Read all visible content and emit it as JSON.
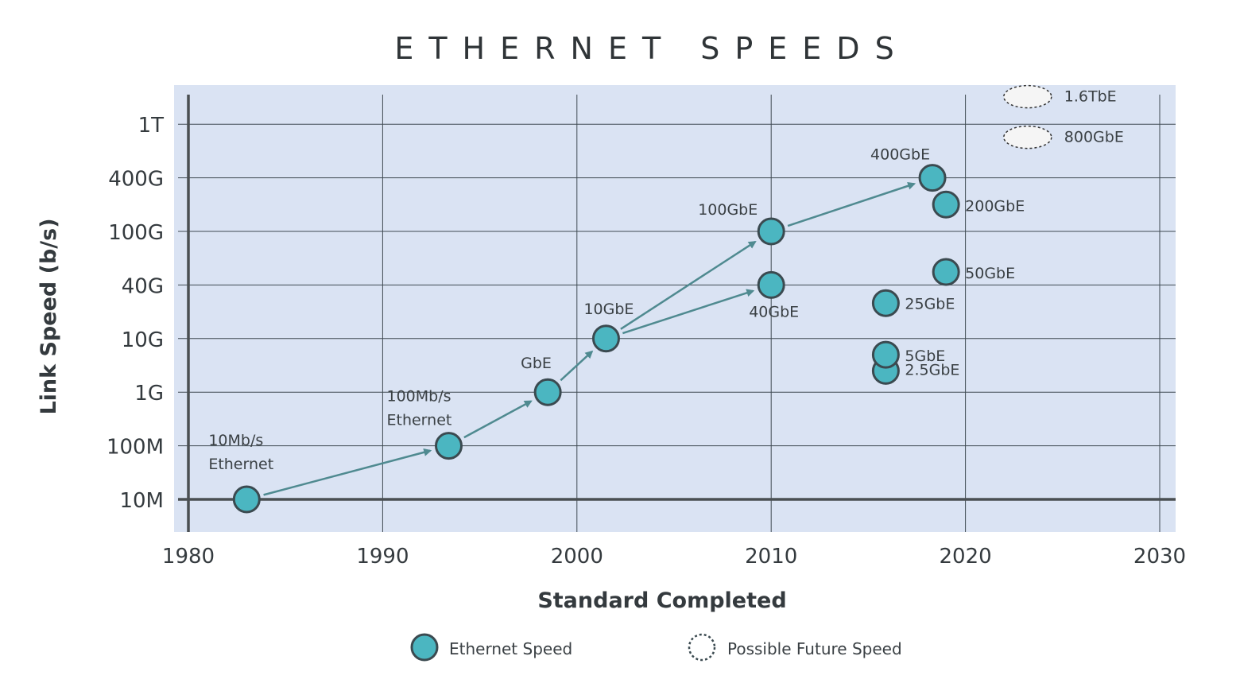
{
  "chart_data": {
    "type": "scatter",
    "title": "ETHERNET SPEEDS",
    "xlabel": "Standard Completed",
    "ylabel": "Link Speed (b/s)",
    "x_ticks": [
      "1980",
      "1990",
      "2000",
      "2010",
      "2020",
      "2030"
    ],
    "xlim": [
      1980,
      2031
    ],
    "y_ticks": [
      "10M",
      "100M",
      "1G",
      "10G",
      "40G",
      "100G",
      "400G",
      "1T"
    ],
    "y_scale": "categorical-log",
    "grid": true,
    "colors": {
      "plot_bg": "#dae3f3",
      "point_fill": "#4bb6c1",
      "point_stroke": "#3b4a50",
      "arrow": "#4f8a90",
      "grid": "#3f4a52",
      "future_fill": "#f5f5f5"
    },
    "series": [
      {
        "name": "Ethernet Speed",
        "points": [
          {
            "x": 1983.0,
            "y": "10M",
            "label": "10Mb/s\nEthernet"
          },
          {
            "x": 1993.4,
            "y": "100M",
            "label": "100Mb/s\nEthernet"
          },
          {
            "x": 1998.5,
            "y": "1G",
            "label": "GbE"
          },
          {
            "x": 2001.5,
            "y": "10G",
            "label": "10GbE"
          },
          {
            "x": 2010.0,
            "y": "40G",
            "label": "40GbE"
          },
          {
            "x": 2010.0,
            "y": "100G",
            "label": "100GbE"
          },
          {
            "x": 2015.9,
            "y": "2.5G",
            "label": "2.5GbE"
          },
          {
            "x": 2015.9,
            "y": "5G",
            "label": "5GbE"
          },
          {
            "x": 2015.9,
            "y": "25G",
            "label": "25GbE"
          },
          {
            "x": 2019.0,
            "y": "50G",
            "label": "50GbE"
          },
          {
            "x": 2019.0,
            "y": "200G",
            "label": "200GbE"
          },
          {
            "x": 2018.3,
            "y": "400G",
            "label": "400GbE"
          }
        ]
      },
      {
        "name": "Possible Future Speed",
        "points": [
          {
            "x": 2023.2,
            "y": "800G",
            "label": "800GbE"
          },
          {
            "x": 2023.2,
            "y": "1.6T",
            "label": "1.6TbE"
          }
        ]
      }
    ],
    "arrows": [
      {
        "from": "10Mb/s\nEthernet",
        "to": "100Mb/s\nEthernet"
      },
      {
        "from": "100Mb/s\nEthernet",
        "to": "GbE"
      },
      {
        "from": "GbE",
        "to": "10GbE"
      },
      {
        "from": "10GbE",
        "to": "100GbE"
      },
      {
        "from": "10GbE",
        "to": "40GbE"
      },
      {
        "from": "100GbE",
        "to": "400GbE"
      }
    ],
    "legend": {
      "position": "bottom",
      "items": [
        "Ethernet Speed",
        "Possible Future Speed"
      ]
    }
  }
}
